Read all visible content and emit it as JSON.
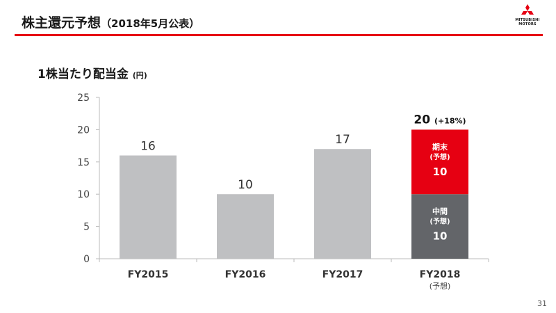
{
  "header": {
    "title": "株主還元予想",
    "title_note": "（2018年5月公表）",
    "logo_label_1": "MITSUBISHI",
    "logo_label_2": "MOTORS"
  },
  "chart_data": {
    "type": "bar",
    "title": "1株当たり配当金",
    "unit": "(円)",
    "categories": [
      "FY2015",
      "FY2016",
      "FY2017",
      "FY2018"
    ],
    "category_notes": [
      "",
      "",
      "",
      "(予想)"
    ],
    "values": [
      16,
      10,
      17,
      20
    ],
    "ylim": [
      0,
      25
    ],
    "yticks": [
      0,
      5,
      10,
      15,
      20,
      25
    ],
    "annotations": [
      {
        "category": "FY2018",
        "value_label": "20",
        "note": "(+18%)"
      }
    ],
    "stack": {
      "category": "FY2018",
      "segments": [
        {
          "name": "中間",
          "note": "(予想)",
          "value": 10,
          "color": "#636569"
        },
        {
          "name": "期末",
          "note": "(予想)",
          "value": 10,
          "color": "#e60012"
        }
      ]
    },
    "colors": {
      "bar": "#bfc0c2",
      "axis": "#bbbbbb"
    }
  },
  "footer": {
    "page_number": "31"
  }
}
